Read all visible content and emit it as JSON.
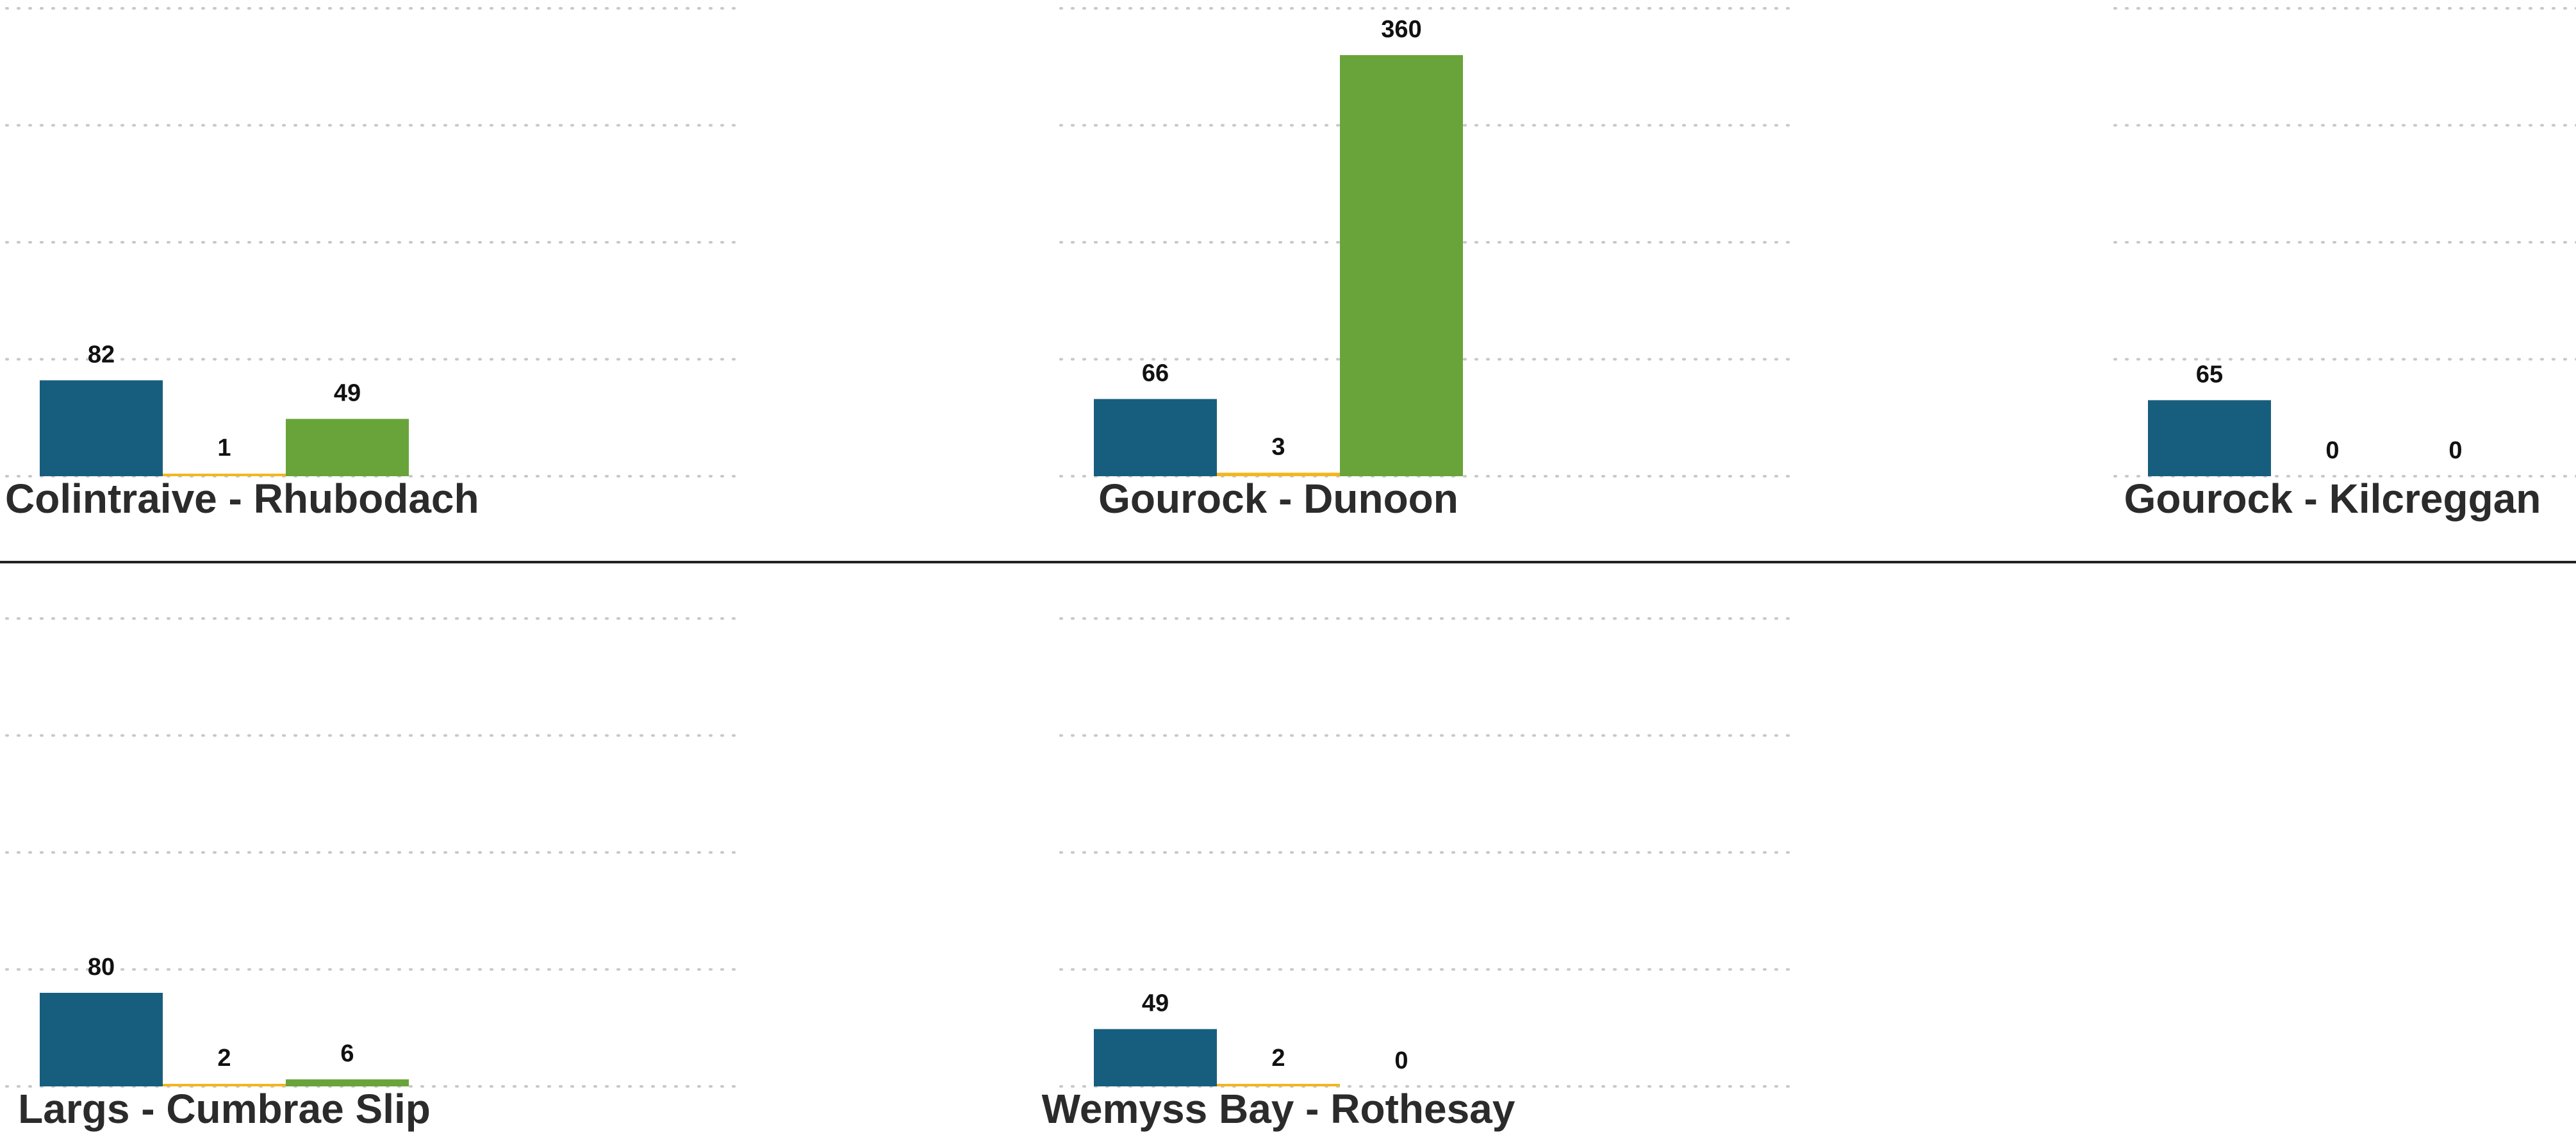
{
  "chart_data": {
    "type": "bar",
    "layout": "facet-grid-3-columns",
    "series_colors": [
      "#175e7e",
      "#f2b61f",
      "#69a43a"
    ],
    "panels": [
      {
        "title": "Colintraive - Rhubodach",
        "values": [
          82,
          1,
          49
        ]
      },
      {
        "title": "Gourock - Dunoon",
        "values": [
          66,
          3,
          360
        ]
      },
      {
        "title": "Gourock - Kilcreggan",
        "values": [
          65,
          0,
          0
        ]
      },
      {
        "title": "Largs - Cumbrae Slip",
        "values": [
          80,
          2,
          6
        ]
      },
      {
        "title": "Wemyss Bay - Rothesay",
        "values": [
          49,
          2,
          0
        ]
      }
    ],
    "ylim": [
      0,
      400
    ],
    "grid": true,
    "legend": "none"
  }
}
